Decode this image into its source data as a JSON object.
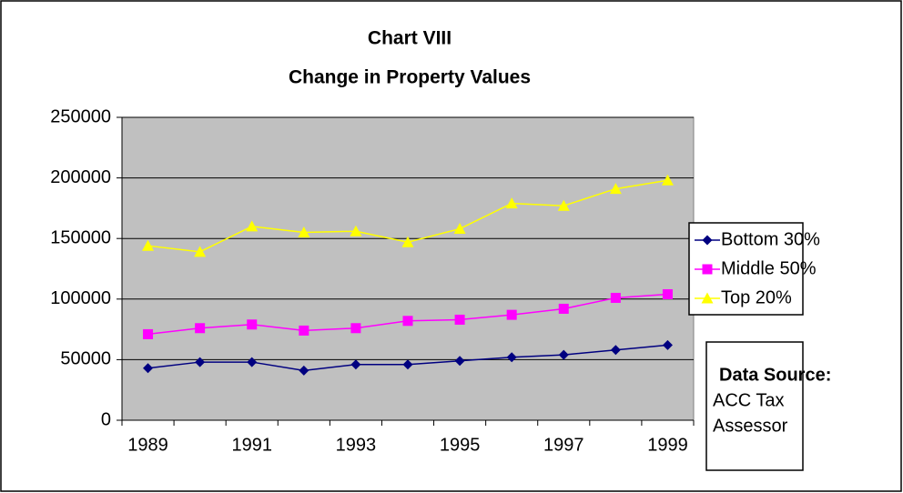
{
  "chart_data": {
    "type": "line",
    "title": "Chart VIII",
    "subtitle": "Change in Property Values",
    "categories": [
      "1989",
      null,
      "1991",
      null,
      "1993",
      null,
      "1995",
      null,
      "1997",
      null,
      "1999"
    ],
    "series": [
      {
        "name": "Bottom 30%",
        "color": "#000080",
        "marker": "diamond",
        "values": [
          43000,
          48000,
          48000,
          41000,
          46000,
          46000,
          49000,
          52000,
          54000,
          58000,
          62000
        ]
      },
      {
        "name": "Middle 50%",
        "color": "#ff00ff",
        "marker": "square",
        "values": [
          71000,
          76000,
          79000,
          74000,
          76000,
          82000,
          83000,
          87000,
          92000,
          101000,
          104000
        ]
      },
      {
        "name": "Top 20%",
        "color": "#ffff00",
        "marker": "triangle",
        "values": [
          144000,
          139000,
          160000,
          155000,
          156000,
          147000,
          158000,
          179000,
          177000,
          191000,
          198000
        ]
      }
    ],
    "ylim": [
      0,
      250000
    ],
    "yticks": [
      0,
      50000,
      100000,
      150000,
      200000,
      250000
    ],
    "grid": true,
    "plot_background": "#c0c0c0",
    "legend": "right",
    "source": {
      "label": "Data Source:",
      "lines": [
        "ACC Tax",
        "Assessor"
      ]
    }
  }
}
